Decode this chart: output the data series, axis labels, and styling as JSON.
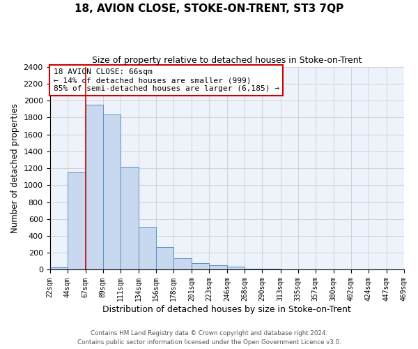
{
  "title": "18, AVION CLOSE, STOKE-ON-TRENT, ST3 7QP",
  "subtitle": "Size of property relative to detached houses in Stoke-on-Trent",
  "xlabel": "Distribution of detached houses by size in Stoke-on-Trent",
  "ylabel": "Number of detached properties",
  "bar_values": [
    30,
    1150,
    1950,
    1835,
    1220,
    510,
    265,
    140,
    75,
    50,
    40,
    10,
    10,
    5,
    0,
    0,
    0,
    5,
    0,
    0
  ],
  "bin_edges": [
    22,
    44,
    67,
    89,
    111,
    134,
    156,
    178,
    201,
    223,
    246,
    268,
    290,
    313,
    335,
    357,
    380,
    402,
    424,
    447,
    469
  ],
  "tick_labels": [
    "22sqm",
    "44sqm",
    "67sqm",
    "89sqm",
    "111sqm",
    "134sqm",
    "156sqm",
    "178sqm",
    "201sqm",
    "223sqm",
    "246sqm",
    "268sqm",
    "290sqm",
    "313sqm",
    "335sqm",
    "357sqm",
    "380sqm",
    "402sqm",
    "424sqm",
    "447sqm",
    "469sqm"
  ],
  "bar_facecolor": "#c8d8ef",
  "bar_edgecolor": "#5b8fc9",
  "grid_color": "#cccccc",
  "background_color": "#eef2fa",
  "annotation_box_color": "#ffffff",
  "annotation_border_color": "#cc0000",
  "red_line_x": 67,
  "annotation_line1": "18 AVION CLOSE: 66sqm",
  "annotation_line2": "← 14% of detached houses are smaller (999)",
  "annotation_line3": "85% of semi-detached houses are larger (6,185) →",
  "ylim": [
    0,
    2400
  ],
  "yticks": [
    0,
    200,
    400,
    600,
    800,
    1000,
    1200,
    1400,
    1600,
    1800,
    2000,
    2200,
    2400
  ],
  "footer1": "Contains HM Land Registry data © Crown copyright and database right 2024.",
  "footer2": "Contains public sector information licensed under the Open Government Licence v3.0."
}
